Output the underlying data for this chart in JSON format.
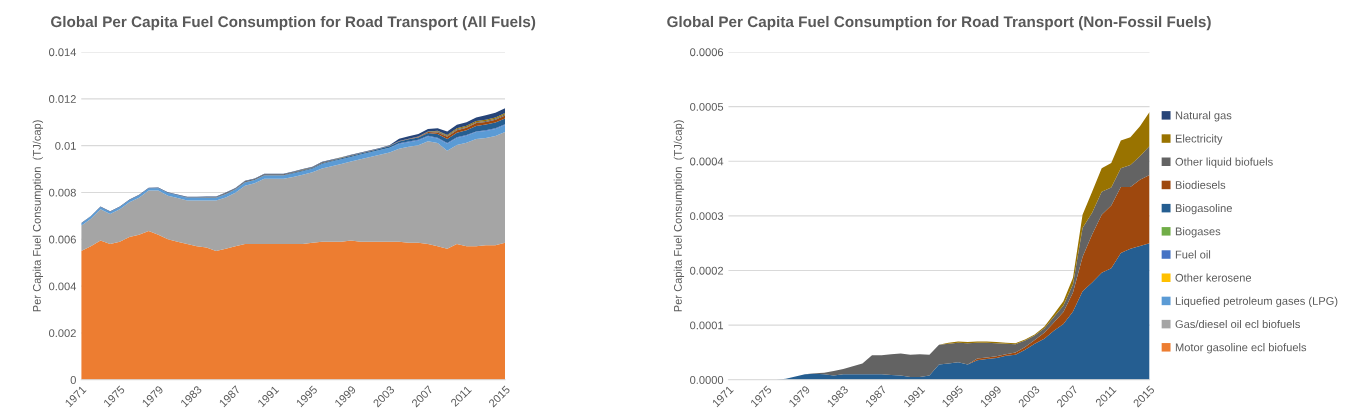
{
  "chart_data": [
    {
      "type": "area",
      "stacked": true,
      "title": "Global Per Capita Fuel Consumption for Road Transport (All Fuels)",
      "ylabel": "Per Capita Fuel Consumption  (TJ/cap)",
      "categories": [
        "1971",
        null,
        null,
        null,
        "1975",
        null,
        null,
        null,
        "1979",
        null,
        null,
        null,
        "1983",
        null,
        null,
        null,
        "1987",
        null,
        null,
        null,
        "1991",
        null,
        null,
        null,
        "1995",
        null,
        null,
        null,
        "1999",
        null,
        null,
        null,
        "2003",
        null,
        null,
        null,
        "2007",
        null,
        null,
        null,
        "2011",
        null,
        null,
        null,
        "2015"
      ],
      "ylim": [
        0,
        0.014
      ],
      "yticks": [
        0,
        0.002,
        0.004,
        0.006,
        0.008,
        0.01,
        0.012,
        0.014
      ],
      "grid": "y",
      "legend": false,
      "series": [
        {
          "color": "#ed7d31",
          "values": [
            0.0055,
            0.0057,
            0.00595,
            0.0058,
            0.0059,
            0.0061,
            0.0062,
            0.00635,
            0.0062,
            0.006,
            0.0059,
            0.0058,
            0.0057,
            0.00565,
            0.0055,
            0.0056,
            0.0057,
            0.0058,
            0.0058,
            0.0058,
            0.0058,
            0.0058,
            0.0058,
            0.0058,
            0.00585,
            0.0059,
            0.0059,
            0.0059,
            0.00595,
            0.0059,
            0.0059,
            0.0059,
            0.0059,
            0.0059,
            0.00585,
            0.00585,
            0.0058,
            0.0057,
            0.0056,
            0.0058,
            0.0057,
            0.0057,
            0.00575,
            0.00575,
            0.00585
          ]
        },
        {
          "color": "#a5a5a5",
          "values": [
            0.00108,
            0.00118,
            0.00133,
            0.00128,
            0.00138,
            0.00148,
            0.00158,
            0.00173,
            0.00188,
            0.00186,
            0.00186,
            0.00186,
            0.00196,
            0.00201,
            0.00216,
            0.00219,
            0.00229,
            0.00249,
            0.00259,
            0.00279,
            0.00279,
            0.00279,
            0.00286,
            0.00296,
            0.00301,
            0.00312,
            0.00322,
            0.00332,
            0.00337,
            0.00352,
            0.00362,
            0.00371,
            0.00381,
            0.00397,
            0.0041,
            0.00417,
            0.00439,
            0.00441,
            0.00418,
            0.00423,
            0.00442,
            0.00458,
            0.00458,
            0.00466,
            0.00473
          ]
        },
        {
          "color": "#5b9bd5",
          "values": [
            0.0001,
            0.0001,
            0.0001,
            0.0001,
            0.0001,
            0.0001,
            0.0001,
            0.0001,
            0.0001,
            0.00012,
            0.00012,
            0.00012,
            0.00012,
            0.00012,
            0.00012,
            0.00014,
            0.00014,
            0.00014,
            0.00014,
            0.00014,
            0.00014,
            0.00014,
            0.00015,
            0.00015,
            0.00015,
            0.0002,
            0.0002,
            0.0002,
            0.0002,
            0.0002,
            0.0002,
            0.0002,
            0.0002,
            0.0002,
            0.0002,
            0.0002,
            0.0002,
            0.0002,
            0.0003,
            0.0003,
            0.0003,
            0.0003,
            0.0003,
            0.0003,
            0.0003
          ]
        },
        {
          "color": "#4472c4",
          "values": [
            0,
            0,
            0,
            0,
            0,
            0,
            0,
            0,
            0,
            0,
            0,
            0,
            0,
            0,
            0,
            0,
            0,
            0,
            0,
            0,
            0,
            0,
            0,
            0,
            0,
            0,
            0,
            0,
            0,
            0,
            0,
            0,
            0,
            3e-05,
            3e-05,
            3e-05,
            3e-05,
            3e-05,
            3e-05,
            3e-05,
            3e-05,
            3e-05,
            3e-05,
            3e-05,
            3e-05
          ]
        },
        {
          "color": "#255e91",
          "values": [
            0,
            0,
            0,
            0,
            0,
            0,
            2e-06,
            6e-06,
            1e-05,
            1.1e-05,
            1e-05,
            8e-06,
            1e-05,
            1e-05,
            1e-05,
            1e-05,
            1e-05,
            9e-06,
            8e-06,
            5e-06,
            5e-06,
            8e-06,
            2.8e-05,
            3e-05,
            3.2e-05,
            2.8e-05,
            3.6e-05,
            3.8e-05,
            4e-05,
            4.4e-05,
            4.6e-05,
            5.5e-05,
            6.6e-05,
            7.5e-05,
            9e-05,
            0.000102,
            0.000125,
            0.000162,
            0.000178,
            0.000196,
            0.000204,
            0.000232,
            0.00024,
            0.000245,
            0.00025
          ]
        },
        {
          "color": "#9e480e",
          "values": [
            0,
            0,
            0,
            0,
            0,
            0,
            0,
            0,
            0,
            0,
            0,
            0,
            0,
            0,
            0,
            0,
            0,
            0,
            0,
            0,
            0,
            0,
            0,
            0,
            0,
            0,
            3e-06,
            3e-06,
            3e-06,
            3e-06,
            4e-06,
            5e-06,
            7e-06,
            1.1e-05,
            1.5e-05,
            2.2e-05,
            3.5e-05,
            6.3e-05,
            8.8e-05,
            0.000106,
            0.000115,
            0.000121,
            0.000113,
            0.000121,
            0.000125
          ]
        },
        {
          "color": "#636363",
          "values": [
            0,
            0,
            0,
            0,
            0,
            0,
            0,
            0,
            0,
            1e-06,
            3e-06,
            8e-06,
            1e-05,
            1.5e-05,
            2e-05,
            3.5e-05,
            3.5e-05,
            3.8e-05,
            4e-05,
            4.1e-05,
            4.2e-05,
            3.8e-05,
            3.6e-05,
            3.6e-05,
            3.6e-05,
            3.9e-05,
            2.9e-05,
            2.7e-05,
            2.4e-05,
            1.9e-05,
            1.5e-05,
            1.2e-05,
            8e-06,
            8e-06,
            1e-05,
            1.2e-05,
            1.5e-05,
            5.3e-05,
            4e-05,
            4.2e-05,
            3.3e-05,
            3.4e-05,
            4e-05,
            4.3e-05,
            5.3e-05
          ]
        },
        {
          "color": "#997300",
          "values": [
            0,
            0,
            0,
            0,
            0,
            0,
            0,
            0,
            0,
            0,
            0,
            0,
            0,
            0,
            0,
            0,
            0,
            0,
            0,
            0,
            0,
            0,
            0,
            2e-06,
            2e-06,
            2e-06,
            2e-06,
            2e-06,
            2e-06,
            2e-06,
            2e-06,
            2e-06,
            2e-06,
            3e-06,
            5e-06,
            8e-06,
            1.2e-05,
            2.4e-05,
            3.8e-05,
            4.3e-05,
            4.5e-05,
            5.1e-05,
            5.1e-05,
            5.5e-05,
            6.2e-05
          ]
        },
        {
          "color": "#264478",
          "values": [
            2e-05,
            2e-05,
            2e-05,
            2e-05,
            2e-05,
            2e-05,
            2e-05,
            2e-05,
            2e-05,
            2e-05,
            2e-05,
            2e-05,
            2e-05,
            2e-05,
            2e-05,
            2e-05,
            2e-05,
            2e-05,
            2e-05,
            2e-05,
            2e-05,
            2e-05,
            2e-05,
            2e-05,
            2e-05,
            2e-05,
            2e-05,
            2e-05,
            2e-05,
            2e-05,
            2e-05,
            2e-05,
            2e-05,
            0.0001,
            0.0001,
            0.0001,
            0.0001,
            0.0001,
            0.00015,
            0.00015,
            0.00015,
            0.00015,
            0.0002,
            0.0002,
            0.0002
          ]
        }
      ]
    },
    {
      "type": "area",
      "stacked": true,
      "title": "Global Per Capita Fuel Consumption for Road Transport (Non-Fossil Fuels)",
      "ylabel": "Per Capita Fuel Consumption  (TJ/cap)",
      "categories": [
        "1971",
        null,
        null,
        null,
        "1975",
        null,
        null,
        null,
        "1979",
        null,
        null,
        null,
        "1983",
        null,
        null,
        null,
        "1987",
        null,
        null,
        null,
        "1991",
        null,
        null,
        null,
        "1995",
        null,
        null,
        null,
        "1999",
        null,
        null,
        null,
        "2003",
        null,
        null,
        null,
        "2007",
        null,
        null,
        null,
        "2011",
        null,
        null,
        null,
        "2015"
      ],
      "ylim": [
        0,
        0.0006
      ],
      "yticks": [
        {
          "value": 0,
          "label": "0.0000"
        },
        {
          "value": 0.0001,
          "label": "0.0001"
        },
        {
          "value": 0.0002,
          "label": "0.0002"
        },
        {
          "value": 0.0003,
          "label": "0.0003"
        },
        {
          "value": 0.0004,
          "label": "0.0004"
        },
        {
          "value": 0.0005,
          "label": "0.0005"
        },
        {
          "value": 0.0006,
          "label": "0.0006"
        }
      ],
      "grid": "y",
      "legend": "right",
      "series": [
        {
          "name": "Motor gasoline ecl biofuels",
          "color": "#ed7d31",
          "values": [
            null,
            null,
            null,
            null,
            null,
            null,
            null,
            null,
            null,
            null,
            null,
            null,
            null,
            null,
            null,
            null,
            null,
            null,
            null,
            null,
            null,
            null,
            null,
            null,
            null,
            null,
            null,
            null,
            null,
            null,
            null,
            null,
            null,
            null,
            null,
            null,
            null,
            null,
            null,
            null,
            null,
            null,
            null,
            null,
            null
          ]
        },
        {
          "name": "Gas/diesel oil ecl biofuels",
          "color": "#a5a5a5",
          "values": [
            null,
            null,
            null,
            null,
            null,
            null,
            null,
            null,
            null,
            null,
            null,
            null,
            null,
            null,
            null,
            null,
            null,
            null,
            null,
            null,
            null,
            null,
            null,
            null,
            null,
            null,
            null,
            null,
            null,
            null,
            null,
            null,
            null,
            null,
            null,
            null,
            null,
            null,
            null,
            null,
            null,
            null,
            null,
            null,
            null
          ]
        },
        {
          "name": "Liquefied petroleum gases (LPG)",
          "color": "#5b9bd5",
          "values": [
            null,
            null,
            null,
            null,
            null,
            null,
            null,
            null,
            null,
            null,
            null,
            null,
            null,
            null,
            null,
            null,
            null,
            null,
            null,
            null,
            null,
            null,
            null,
            null,
            null,
            null,
            null,
            null,
            null,
            null,
            null,
            null,
            null,
            null,
            null,
            null,
            null,
            null,
            null,
            null,
            null,
            null,
            null,
            null,
            null
          ]
        },
        {
          "name": "Other kerosene",
          "color": "#ffc000",
          "values": [
            null,
            null,
            null,
            null,
            null,
            null,
            null,
            null,
            null,
            null,
            null,
            null,
            null,
            null,
            null,
            null,
            null,
            null,
            null,
            null,
            null,
            null,
            null,
            null,
            null,
            null,
            null,
            null,
            null,
            null,
            null,
            null,
            null,
            null,
            null,
            null,
            null,
            null,
            null,
            null,
            null,
            null,
            null,
            null,
            null
          ]
        },
        {
          "name": "Fuel oil",
          "color": "#4472c4",
          "values": [
            null,
            null,
            null,
            null,
            null,
            null,
            null,
            null,
            null,
            null,
            null,
            null,
            null,
            null,
            null,
            null,
            null,
            null,
            null,
            null,
            null,
            null,
            null,
            null,
            null,
            null,
            null,
            null,
            null,
            null,
            null,
            null,
            null,
            null,
            null,
            null,
            null,
            null,
            null,
            null,
            null,
            null,
            null,
            null,
            null
          ]
        },
        {
          "name": "Biogases",
          "color": "#70ad47",
          "values": [
            null,
            null,
            null,
            null,
            null,
            null,
            null,
            null,
            null,
            null,
            null,
            null,
            null,
            null,
            null,
            null,
            null,
            null,
            null,
            null,
            null,
            null,
            null,
            null,
            null,
            null,
            null,
            null,
            null,
            null,
            null,
            null,
            null,
            null,
            null,
            null,
            null,
            null,
            null,
            null,
            null,
            null,
            null,
            null,
            null
          ]
        },
        {
          "name": "Biogasoline",
          "color": "#255e91",
          "values": [
            0,
            0,
            0,
            0,
            0,
            0,
            2e-06,
            6e-06,
            1e-05,
            1.1e-05,
            1e-05,
            8e-06,
            1e-05,
            1e-05,
            1e-05,
            1e-05,
            1e-05,
            9e-06,
            8e-06,
            5e-06,
            5e-06,
            8e-06,
            2.8e-05,
            3e-05,
            3.2e-05,
            2.8e-05,
            3.6e-05,
            3.8e-05,
            4e-05,
            4.4e-05,
            4.6e-05,
            5.5e-05,
            6.6e-05,
            7.5e-05,
            9e-05,
            0.000102,
            0.000125,
            0.000162,
            0.000178,
            0.000196,
            0.000204,
            0.000232,
            0.00024,
            0.000245,
            0.00025
          ]
        },
        {
          "name": "Biodiesels",
          "color": "#9e480e",
          "values": [
            0,
            0,
            0,
            0,
            0,
            0,
            0,
            0,
            0,
            0,
            0,
            0,
            0,
            0,
            0,
            0,
            0,
            0,
            0,
            0,
            0,
            0,
            0,
            0,
            0,
            0,
            3e-06,
            3e-06,
            3e-06,
            3e-06,
            4e-06,
            5e-06,
            7e-06,
            1.1e-05,
            1.5e-05,
            2.2e-05,
            3.5e-05,
            6.3e-05,
            8.8e-05,
            0.000106,
            0.000115,
            0.000121,
            0.000113,
            0.000121,
            0.000125
          ]
        },
        {
          "name": "Other liquid biofuels",
          "color": "#636363",
          "values": [
            0,
            0,
            0,
            0,
            0,
            0,
            0,
            0,
            0,
            1e-06,
            3e-06,
            8e-06,
            1e-05,
            1.5e-05,
            2e-05,
            3.5e-05,
            3.5e-05,
            3.8e-05,
            4e-05,
            4.1e-05,
            4.2e-05,
            3.8e-05,
            3.6e-05,
            3.6e-05,
            3.6e-05,
            3.9e-05,
            2.9e-05,
            2.7e-05,
            2.4e-05,
            1.9e-05,
            1.5e-05,
            1.2e-05,
            8e-06,
            8e-06,
            1e-05,
            1.2e-05,
            1.5e-05,
            5.3e-05,
            4e-05,
            4.2e-05,
            3.3e-05,
            3.4e-05,
            4e-05,
            4.3e-05,
            5.3e-05
          ]
        },
        {
          "name": "Electricity",
          "color": "#997300",
          "values": [
            0,
            0,
            0,
            0,
            0,
            0,
            0,
            0,
            0,
            0,
            0,
            0,
            0,
            0,
            0,
            0,
            0,
            0,
            0,
            0,
            0,
            0,
            0,
            2e-06,
            2e-06,
            2e-06,
            2e-06,
            2e-06,
            2e-06,
            2e-06,
            2e-06,
            2e-06,
            2e-06,
            3e-06,
            5e-06,
            8e-06,
            1.2e-05,
            2.4e-05,
            3.8e-05,
            4.3e-05,
            4.5e-05,
            5.1e-05,
            5.1e-05,
            5.5e-05,
            6.2e-05
          ]
        },
        {
          "name": "Natural gas",
          "color": "#264478",
          "values": [
            null,
            null,
            null,
            null,
            null,
            null,
            null,
            null,
            null,
            null,
            null,
            null,
            null,
            null,
            null,
            null,
            null,
            null,
            null,
            null,
            null,
            null,
            null,
            null,
            null,
            null,
            null,
            null,
            null,
            null,
            null,
            null,
            null,
            null,
            null,
            null,
            null,
            null,
            null,
            null,
            null,
            null,
            null,
            null,
            null
          ]
        }
      ]
    }
  ]
}
